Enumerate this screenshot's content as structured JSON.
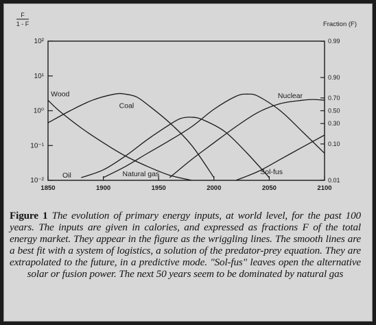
{
  "figure": {
    "caption_label": "Figure 1",
    "caption_text": "The evolution of primary energy inputs, at world level, for the past 100 years. The inputs are given in calories, and expressed as fractions F of the total energy market. They appear in the figure as the wriggling lines. The smooth lines are a best fit with a system of logistics, a solution of the predator-prey equation. They are extrapolated to the future, in a predictive mode. \"Sol-fus\" leaves open the alternative solar or fusion power. The next 50 years seem to be dominated by natural gas"
  },
  "chart_data": {
    "type": "line",
    "title": "",
    "y_axis_left": {
      "label_top": "F",
      "label_bottom": "1 - F",
      "scale": "log",
      "ylim": [
        0.01,
        100
      ],
      "ticks": [
        "10²",
        "10¹",
        "10⁰",
        "10⁻¹",
        "10⁻²"
      ],
      "tick_values": [
        100,
        10,
        1,
        0.1,
        0.01
      ]
    },
    "y_axis_right": {
      "label": "Fraction (F)",
      "ticks": [
        "0.99",
        "0.90",
        "0.70",
        "0.50",
        "0.30",
        "0.10",
        "0.01"
      ],
      "tick_values": [
        99,
        9,
        2.333,
        1,
        0.4286,
        0.1111,
        0.0101
      ]
    },
    "x_axis": {
      "xlim": [
        1850,
        2100
      ],
      "ticks": [
        "1850",
        "1900",
        "1950",
        "2000",
        "2050",
        "2100"
      ],
      "tick_values": [
        1850,
        1900,
        1950,
        2000,
        2050,
        2100
      ]
    },
    "grid": false,
    "series": [
      {
        "name": "Wood",
        "x": [
          1850,
          1860,
          1880,
          1900,
          1920,
          1940,
          1960,
          1980
        ],
        "y": [
          2.0,
          1.0,
          0.32,
          0.12,
          0.05,
          0.025,
          0.014,
          0.01
        ]
      },
      {
        "name": "Coal",
        "x": [
          1850,
          1870,
          1890,
          1910,
          1920,
          1930,
          1940,
          1960,
          1980,
          2000
        ],
        "y": [
          0.45,
          1.0,
          2.0,
          3.0,
          3.0,
          2.5,
          1.5,
          0.45,
          0.1,
          0.012
        ]
      },
      {
        "name": "Oil",
        "x": [
          1880,
          1900,
          1920,
          1940,
          1960,
          1970,
          1980,
          1990,
          2010,
          2030,
          2050
        ],
        "y": [
          0.012,
          0.02,
          0.05,
          0.15,
          0.4,
          0.6,
          0.65,
          0.55,
          0.25,
          0.06,
          0.012
        ]
      },
      {
        "name": "Natural gas",
        "x": [
          1900,
          1920,
          1940,
          1960,
          1980,
          2000,
          2020,
          2030,
          2040,
          2060,
          2080,
          2100
        ],
        "y": [
          0.012,
          0.025,
          0.06,
          0.14,
          0.35,
          1.1,
          2.6,
          3.0,
          2.6,
          1.0,
          0.25,
          0.06
        ]
      },
      {
        "name": "Nuclear",
        "x": [
          1960,
          1980,
          2000,
          2020,
          2040,
          2060,
          2080,
          2090,
          2100
        ],
        "y": [
          0.012,
          0.04,
          0.12,
          0.35,
          0.9,
          1.6,
          2.0,
          2.1,
          2.0
        ]
      },
      {
        "name": "Sol-fus",
        "x": [
          2020,
          2040,
          2060,
          2080,
          2100
        ],
        "y": [
          0.01,
          0.018,
          0.04,
          0.09,
          0.2
        ]
      }
    ],
    "annotations": [
      "Wood",
      "Coal",
      "Oil",
      "Natural gas",
      "Nuclear",
      "Sol-fus"
    ]
  }
}
